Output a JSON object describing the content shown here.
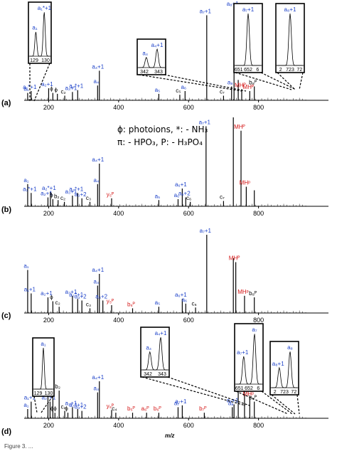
{
  "colors": {
    "blue": "#1a3fc8",
    "red": "#d41515",
    "black": "#000000"
  },
  "legend": {
    "line1": "ϕ: photoions, *: - NH₃",
    "line2": "π: - HPO₃, P: - H₃PO₄"
  },
  "axis_title": "m/z",
  "caption_fragment": "Figure 3. ...",
  "chart_data": [
    {
      "type": "bar",
      "panel": "(a)",
      "xlim": [
        130,
        1000
      ],
      "xticks": [
        200,
        400,
        600,
        800
      ],
      "peaks": [
        {
          "x": 140,
          "h": 0.08,
          "label": "a₁",
          "color": "blue"
        },
        {
          "x": 150,
          "h": 0.1,
          "label": "a₁*+1",
          "color": "blue"
        },
        {
          "x": 200,
          "h": 0.13,
          "label": "a₂+1",
          "color": "blue"
        },
        {
          "x": 212,
          "h": 0.08,
          "label": "ϕ",
          "color": "black"
        },
        {
          "x": 225,
          "h": 0.07,
          "label": "ϕ",
          "color": "black"
        },
        {
          "x": 246,
          "h": 0.05,
          "label": "c₂",
          "color": "black"
        },
        {
          "x": 268,
          "h": 0.09,
          "label": "a₃+1",
          "color": "blue"
        },
        {
          "x": 283,
          "h": 0.11,
          "label": "a₃*+1",
          "color": "blue"
        },
        {
          "x": 340,
          "h": 0.16,
          "label": "a₄",
          "color": "blue"
        },
        {
          "x": 345,
          "h": 0.32,
          "label": "a₄+1",
          "color": "blue"
        },
        {
          "x": 515,
          "h": 0.07,
          "label": "a₅",
          "color": "blue"
        },
        {
          "x": 575,
          "h": 0.06,
          "label": "c₅",
          "color": "black"
        },
        {
          "x": 590,
          "h": 0.1,
          "label": "a₆",
          "color": "blue"
        },
        {
          "x": 652,
          "h": 0.92,
          "label": "a₇+1",
          "color": "blue"
        },
        {
          "x": 700,
          "h": 0.05,
          "label": "c₇",
          "color": "black"
        },
        {
          "x": 723,
          "h": 0.15,
          "label": "a₈",
          "color": "blue"
        },
        {
          "x": 730,
          "h": 1.0,
          "label": "a₈+1",
          "color": "blue"
        },
        {
          "x": 742,
          "h": 0.22,
          "label": "",
          "color": "black"
        },
        {
          "x": 752,
          "h": 0.12,
          "label": "MHᴾ",
          "color": "red"
        },
        {
          "x": 775,
          "h": 0.1,
          "label": "MHᴾ",
          "color": "red"
        },
        {
          "x": 788,
          "h": 0.15,
          "label": "b₈ᴾ",
          "color": "black"
        }
      ],
      "insets": [
        {
          "labels": [
            "a₁",
            "a₁*+1"
          ],
          "ticks": [
            "129",
            "130"
          ]
        },
        {
          "labels": [
            "a₄",
            "a₄+1"
          ],
          "ticks": [
            "342",
            "343"
          ]
        },
        {
          "labels": [
            "a₇+1"
          ],
          "ticks": [
            "651",
            "652",
            "6"
          ]
        },
        {
          "labels": [
            "a₈+1"
          ],
          "ticks": [
            "2",
            "723",
            "72"
          ]
        }
      ]
    },
    {
      "type": "bar",
      "panel": "(b)",
      "xlim": [
        130,
        1000
      ],
      "xticks": [
        200,
        400,
        600,
        800
      ],
      "peaks": [
        {
          "x": 140,
          "h": 0.25,
          "label": "a₁",
          "color": "blue"
        },
        {
          "x": 150,
          "h": 0.15,
          "label": "a₁*+1",
          "color": "blue"
        },
        {
          "x": 198,
          "h": 0.1,
          "label": "a₂+1",
          "color": "blue"
        },
        {
          "x": 205,
          "h": 0.16,
          "label": "a₂*+1",
          "color": "blue"
        },
        {
          "x": 212,
          "h": 0.08,
          "label": "ϕ",
          "color": "black"
        },
        {
          "x": 227,
          "h": 0.07,
          "label": "b₂",
          "color": "black"
        },
        {
          "x": 245,
          "h": 0.05,
          "label": "c₂",
          "color": "black"
        },
        {
          "x": 268,
          "h": 0.12,
          "label": "a₃+1",
          "color": "blue"
        },
        {
          "x": 283,
          "h": 0.15,
          "label": "a₃*+1",
          "color": "blue"
        },
        {
          "x": 295,
          "h": 0.09,
          "label": "a₃+2",
          "color": "blue"
        },
        {
          "x": 318,
          "h": 0.05,
          "label": "c₃",
          "color": "black"
        },
        {
          "x": 340,
          "h": 0.25,
          "label": "a₄",
          "color": "blue"
        },
        {
          "x": 345,
          "h": 0.48,
          "label": "a₄+1",
          "color": "blue"
        },
        {
          "x": 380,
          "h": 0.09,
          "label": "y₅ᴾ",
          "color": "red"
        },
        {
          "x": 515,
          "h": 0.07,
          "label": "a₅",
          "color": "blue"
        },
        {
          "x": 570,
          "h": 0.08,
          "label": "a₆",
          "color": "blue"
        },
        {
          "x": 582,
          "h": 0.2,
          "label": "a₆+1",
          "color": "blue"
        },
        {
          "x": 592,
          "h": 0.1,
          "label": "a₆+2",
          "color": "blue"
        },
        {
          "x": 605,
          "h": 0.05,
          "label": "c₆",
          "color": "black"
        },
        {
          "x": 650,
          "h": 0.9,
          "label": "a₇+1",
          "color": "blue"
        },
        {
          "x": 700,
          "h": 0.06,
          "label": "c₇",
          "color": "black"
        },
        {
          "x": 728,
          "h": 1.0,
          "label": "",
          "color": "black"
        },
        {
          "x": 750,
          "h": 0.85,
          "label": "MHᴾ",
          "color": "red"
        },
        {
          "x": 765,
          "h": 0.22,
          "label": "MHᵖ",
          "color": "red"
        },
        {
          "x": 788,
          "h": 0.18,
          "label": "",
          "color": "black"
        }
      ]
    },
    {
      "type": "bar",
      "panel": "(c)",
      "xlim": [
        130,
        1000
      ],
      "xticks": [
        200,
        400,
        600,
        800
      ],
      "peaks": [
        {
          "x": 140,
          "h": 0.55,
          "label": "a₁",
          "color": "blue"
        },
        {
          "x": 150,
          "h": 0.25,
          "label": "a₁+1",
          "color": "blue"
        },
        {
          "x": 198,
          "h": 0.2,
          "label": "a₂+1",
          "color": "blue"
        },
        {
          "x": 212,
          "h": 0.15,
          "label": "ϕ",
          "color": "black"
        },
        {
          "x": 230,
          "h": 0.08,
          "label": "c₂",
          "color": "black"
        },
        {
          "x": 268,
          "h": 0.22,
          "label": "a₃+1",
          "color": "blue"
        },
        {
          "x": 283,
          "h": 0.18,
          "label": "a₃*+1",
          "color": "blue"
        },
        {
          "x": 295,
          "h": 0.16,
          "label": "a₃+2",
          "color": "blue"
        },
        {
          "x": 318,
          "h": 0.06,
          "label": "c₃",
          "color": "black"
        },
        {
          "x": 340,
          "h": 0.35,
          "label": "a₄",
          "color": "blue"
        },
        {
          "x": 345,
          "h": 0.5,
          "label": "a₄+1",
          "color": "blue"
        },
        {
          "x": 355,
          "h": 0.16,
          "label": "a₄+2",
          "color": "blue"
        },
        {
          "x": 380,
          "h": 0.1,
          "label": "y₅ᴾ",
          "color": "red"
        },
        {
          "x": 440,
          "h": 0.06,
          "label": "b₅ᴾ",
          "color": "red"
        },
        {
          "x": 515,
          "h": 0.08,
          "label": "a₅",
          "color": "blue"
        },
        {
          "x": 582,
          "h": 0.18,
          "label": "a₆+1",
          "color": "blue"
        },
        {
          "x": 592,
          "h": 0.12,
          "label": "a₆",
          "color": "blue"
        },
        {
          "x": 620,
          "h": 0.07,
          "label": "c₆",
          "color": "black"
        },
        {
          "x": 652,
          "h": 1.0,
          "label": "a₇+1",
          "color": "blue"
        },
        {
          "x": 728,
          "h": 0.7,
          "label": "",
          "color": "black"
        },
        {
          "x": 735,
          "h": 0.65,
          "label": "MHᴾ",
          "color": "red"
        },
        {
          "x": 760,
          "h": 0.22,
          "label": "MHᵖ",
          "color": "red"
        },
        {
          "x": 788,
          "h": 0.2,
          "label": "b₈ᴾ",
          "color": "black"
        }
      ]
    },
    {
      "type": "bar",
      "panel": "(d)",
      "xlim": [
        130,
        1000
      ],
      "xticks": [
        200,
        400,
        600,
        800
      ],
      "peaks": [
        {
          "x": 140,
          "h": 0.1,
          "label": "a₁",
          "color": "blue"
        },
        {
          "x": 150,
          "h": 0.18,
          "label": "a₁+1",
          "color": "blue"
        },
        {
          "x": 198,
          "h": 0.25,
          "label": "a₂+1",
          "color": "blue"
        },
        {
          "x": 204,
          "h": 0.18,
          "label": "a₂*+1",
          "color": "blue"
        },
        {
          "x": 212,
          "h": 0.48,
          "label": "ϕ",
          "color": "black"
        },
        {
          "x": 218,
          "h": 0.06,
          "label": "ϕϕ",
          "color": "black"
        },
        {
          "x": 230,
          "h": 0.3,
          "label": "b₂",
          "color": "black"
        },
        {
          "x": 246,
          "h": 0.08,
          "label": "c₂",
          "color": "black"
        },
        {
          "x": 255,
          "h": 0.06,
          "label": "ϕ",
          "color": "black"
        },
        {
          "x": 268,
          "h": 0.12,
          "label": "a₃+1",
          "color": "blue"
        },
        {
          "x": 283,
          "h": 0.1,
          "label": "a₃*+1",
          "color": "blue"
        },
        {
          "x": 295,
          "h": 0.08,
          "label": "a₃+2",
          "color": "blue"
        },
        {
          "x": 340,
          "h": 0.28,
          "label": "a₄",
          "color": "blue"
        },
        {
          "x": 345,
          "h": 0.4,
          "label": "a₄+1",
          "color": "blue"
        },
        {
          "x": 380,
          "h": 0.09,
          "label": "y₅ᴾ",
          "color": "red"
        },
        {
          "x": 392,
          "h": 0.06,
          "label": "c₄",
          "color": "black"
        },
        {
          "x": 440,
          "h": 0.06,
          "label": "b₅ᴾ",
          "color": "red"
        },
        {
          "x": 480,
          "h": 0.06,
          "label": "a₆ᴾ",
          "color": "red"
        },
        {
          "x": 515,
          "h": 0.06,
          "label": "b₆ᴾ",
          "color": "red"
        },
        {
          "x": 570,
          "h": 0.12,
          "label": "a₇",
          "color": "blue"
        },
        {
          "x": 582,
          "h": 0.14,
          "label": "a₇+1",
          "color": "blue"
        },
        {
          "x": 645,
          "h": 0.06,
          "label": "b₇ᴾ",
          "color": "red"
        },
        {
          "x": 725,
          "h": 0.12,
          "label": "a₈",
          "color": "blue"
        },
        {
          "x": 730,
          "h": 0.15,
          "label": "a₈+1",
          "color": "blue"
        },
        {
          "x": 742,
          "h": 1.0,
          "label": "",
          "color": "black"
        },
        {
          "x": 760,
          "h": 0.3,
          "label": "MHᴾ",
          "color": "red"
        },
        {
          "x": 775,
          "h": 0.22,
          "label": "MHᵖ",
          "color": "red"
        },
        {
          "x": 788,
          "h": 0.18,
          "label": "b₈ᴾ",
          "color": "black"
        }
      ],
      "insets": [
        {
          "labels": [
            "a₁"
          ],
          "ticks": [
            "129",
            "130"
          ]
        },
        {
          "labels": [
            "a₄",
            "a₄+1"
          ],
          "ticks": [
            "342",
            "343"
          ]
        },
        {
          "labels": [
            "a₇+1",
            "a₇"
          ],
          "ticks": [
            "651",
            "652",
            "6"
          ]
        },
        {
          "labels": [
            "a₈+1",
            "a₈"
          ],
          "ticks": [
            "2",
            "723",
            "72"
          ]
        }
      ]
    }
  ]
}
